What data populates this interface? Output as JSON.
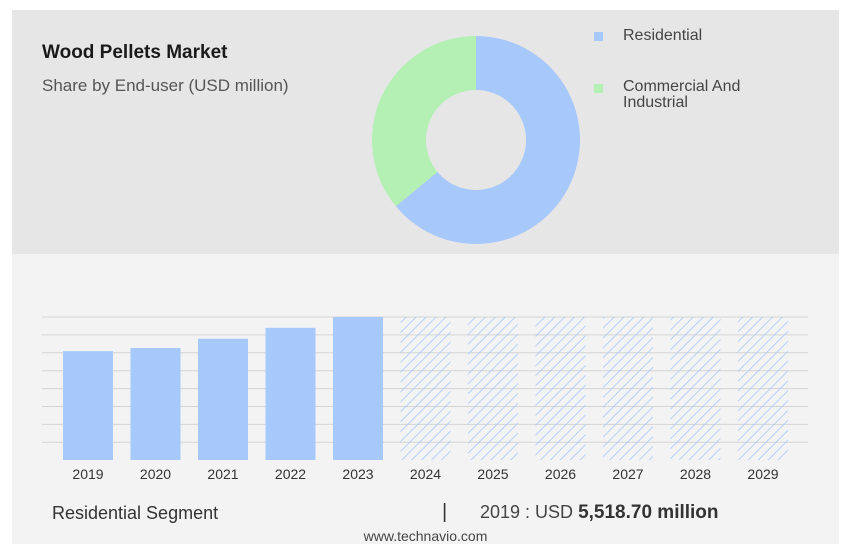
{
  "header": {
    "title": "Wood Pellets Market",
    "subtitle": "Share by End-user (USD million)"
  },
  "colors": {
    "residential": "#a7c8fb",
    "commercial": "#b4efb4",
    "panel_top": "#e6e6e6",
    "panel_bottom": "#f3f3f3",
    "hatch": "#a7c8fb"
  },
  "chart_data": [
    {
      "type": "pie",
      "variant": "donut",
      "labels": [
        "Residential",
        "Commercial And Industrial"
      ],
      "values": [
        64,
        36
      ],
      "legend_position": "right"
    },
    {
      "type": "bar",
      "categories": [
        "2019",
        "2020",
        "2021",
        "2022",
        "2023",
        "2024",
        "2025",
        "2026",
        "2027",
        "2028",
        "2029"
      ],
      "values": [
        5518.7,
        5680,
        6150,
        6700,
        7250,
        null,
        null,
        null,
        null,
        null,
        null
      ],
      "forecast_categories": [
        "2024",
        "2025",
        "2026",
        "2027",
        "2028",
        "2029"
      ],
      "ylim": [
        0,
        7250
      ],
      "grid": true,
      "xlabel": "",
      "ylabel": ""
    }
  ],
  "summary": {
    "segment_label": "Residential Segment",
    "separator": "|",
    "year_prefix": "2019 : USD ",
    "value": "5,518.70 million"
  },
  "footer": {
    "source": "www.technavio.com"
  }
}
